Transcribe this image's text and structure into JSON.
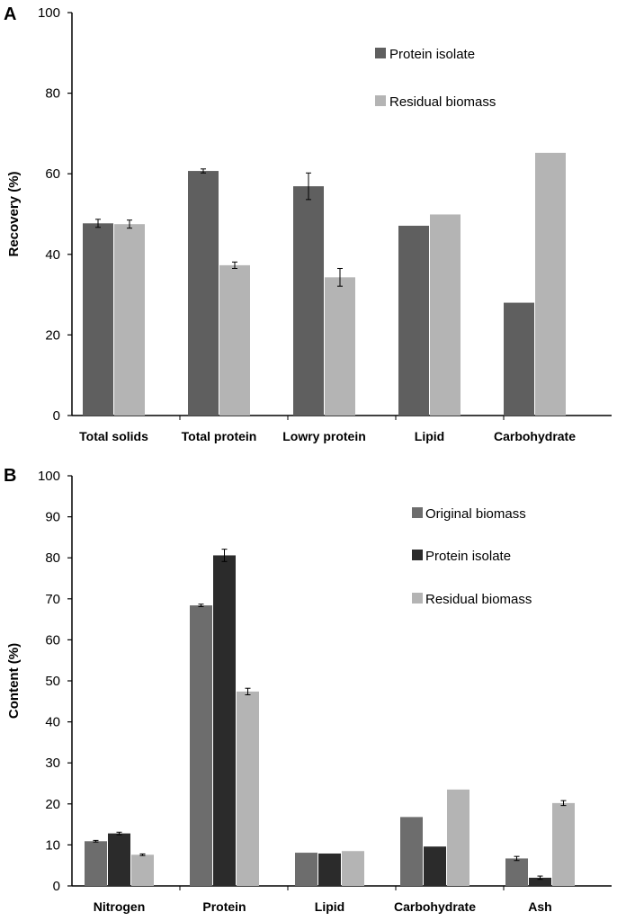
{
  "chart_data": [
    {
      "type": "bar",
      "panel": "A",
      "ylabel": "Recovery  (%)",
      "xlabel": "",
      "ylim": [
        0,
        100
      ],
      "yticks": [
        0,
        20,
        40,
        60,
        80,
        100
      ],
      "categories": [
        "Total solids",
        "Total protein",
        "Lowry protein",
        "Lipid",
        "Carbohydrate"
      ],
      "series": [
        {
          "name": "Protein isolate",
          "color": "#5f5f5f",
          "values": [
            47.7,
            60.7,
            56.9,
            47.1,
            28.0
          ],
          "errors": [
            1.0,
            0.5,
            3.3,
            null,
            null
          ]
        },
        {
          "name": "Residual biomass",
          "color": "#b4b4b4",
          "values": [
            47.5,
            37.3,
            34.3,
            49.9,
            65.2
          ],
          "errors": [
            1.0,
            0.8,
            2.2,
            null,
            null
          ]
        }
      ],
      "legend": "top-right"
    },
    {
      "type": "bar",
      "panel": "B",
      "ylabel": "Content  (%)",
      "xlabel": "",
      "ylim": [
        0,
        100
      ],
      "yticks": [
        0,
        10,
        20,
        30,
        40,
        50,
        60,
        70,
        80,
        90,
        100
      ],
      "categories": [
        "Nitrogen",
        "Protein",
        "Lipid",
        "Carbohydrate",
        "Ash"
      ],
      "series": [
        {
          "name": "Original biomass",
          "color": "#6d6d6d",
          "values": [
            10.9,
            68.4,
            8.1,
            16.8,
            6.7
          ],
          "errors": [
            0.2,
            0.3,
            null,
            null,
            0.5
          ]
        },
        {
          "name": "Protein isolate",
          "color": "#2b2b2b",
          "values": [
            12.8,
            80.6,
            7.9,
            9.6,
            2.0
          ],
          "errors": [
            0.3,
            1.5,
            null,
            null,
            0.4
          ]
        },
        {
          "name": "Residual biomass",
          "color": "#b4b4b4",
          "values": [
            7.6,
            47.4,
            8.5,
            23.5,
            20.2
          ],
          "errors": [
            0.2,
            0.8,
            null,
            null,
            0.6
          ]
        }
      ],
      "legend": "top-right"
    }
  ]
}
